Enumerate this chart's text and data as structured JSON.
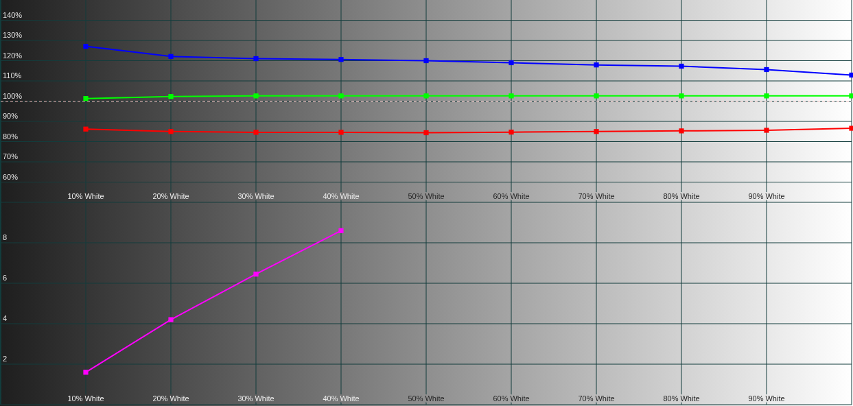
{
  "chart_data": [
    {
      "type": "line",
      "x": [
        10,
        20,
        30,
        40,
        50,
        60,
        70,
        80,
        90,
        100
      ],
      "xlim": [
        0,
        100
      ],
      "xticks": [
        {
          "value": 10,
          "label": "10% White"
        },
        {
          "value": 20,
          "label": "20% White"
        },
        {
          "value": 30,
          "label": "30% White"
        },
        {
          "value": 40,
          "label": "40% White"
        },
        {
          "value": 50,
          "label": "50% White"
        },
        {
          "value": 60,
          "label": "60% White"
        },
        {
          "value": 70,
          "label": "70% White"
        },
        {
          "value": 80,
          "label": "80% White"
        },
        {
          "value": 90,
          "label": "90% White"
        }
      ],
      "ylim": [
        50,
        150
      ],
      "yticks": [
        {
          "value": 60,
          "label": "60%"
        },
        {
          "value": 70,
          "label": "70%"
        },
        {
          "value": 80,
          "label": "80%"
        },
        {
          "value": 90,
          "label": "90%"
        },
        {
          "value": 100,
          "label": "100%"
        },
        {
          "value": 110,
          "label": "110%"
        },
        {
          "value": 120,
          "label": "120%"
        },
        {
          "value": 130,
          "label": "130%"
        },
        {
          "value": 140,
          "label": "140%"
        }
      ],
      "series": [
        {
          "color": "#0000ff",
          "values": [
            127.1,
            122.1,
            121.0,
            120.6,
            120.0,
            119.0,
            117.9,
            117.3,
            115.6,
            112.9
          ]
        },
        {
          "color": "#00ff00",
          "values": [
            101.3,
            102.3,
            102.6,
            102.6,
            102.6,
            102.6,
            102.6,
            102.6,
            102.6,
            102.6
          ]
        },
        {
          "color": "#ff0000",
          "values": [
            86.2,
            85.0,
            84.6,
            84.6,
            84.4,
            84.7,
            85.0,
            85.3,
            85.6,
            86.6
          ]
        }
      ],
      "ref_lines": [
        {
          "axis": "y",
          "value": 100,
          "line_style": "dashed"
        }
      ],
      "grid": true,
      "marker": "square",
      "line_style": "solid"
    },
    {
      "type": "line",
      "x": [
        10,
        20,
        30,
        40
      ],
      "xlim": [
        0,
        100
      ],
      "xticks": [
        {
          "value": 10,
          "label": "10% White"
        },
        {
          "value": 20,
          "label": "20% White"
        },
        {
          "value": 30,
          "label": "30% White"
        },
        {
          "value": 40,
          "label": "40% White"
        },
        {
          "value": 50,
          "label": "50% White"
        },
        {
          "value": 60,
          "label": "60% White"
        },
        {
          "value": 70,
          "label": "70% White"
        },
        {
          "value": 80,
          "label": "80% White"
        },
        {
          "value": 90,
          "label": "90% White"
        }
      ],
      "ylim": [
        0,
        10
      ],
      "yticks": [
        2,
        4,
        6,
        8
      ],
      "series": [
        {
          "color": "#ff00ff",
          "values": [
            1.6,
            4.2,
            6.45,
            8.6
          ]
        }
      ],
      "grid": true,
      "marker": "square",
      "line_style": "solid"
    }
  ]
}
